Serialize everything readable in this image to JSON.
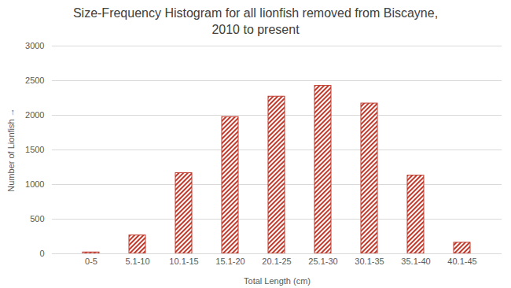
{
  "chart_data": {
    "type": "bar",
    "title": "Size-Frequency Histogram for all lionfish removed from Biscayne, 2010 to present",
    "x_label": "Total Length (cm)",
    "y_label": "Number of Lionfish",
    "categories": [
      "0-5",
      "5.1-10",
      "10.1-15",
      "15.1-20",
      "20.1-25",
      "25.1-30",
      "30.1-35",
      "35.1-40",
      "40.1-45"
    ],
    "values": [
      20,
      265,
      1165,
      1975,
      2270,
      2425,
      2170,
      1130,
      160
    ],
    "color": "#c0392b",
    "ylim": [
      0,
      3000
    ],
    "yticks": [
      0,
      500,
      1000,
      1500,
      2000,
      2500,
      3000
    ],
    "grid": true
  }
}
